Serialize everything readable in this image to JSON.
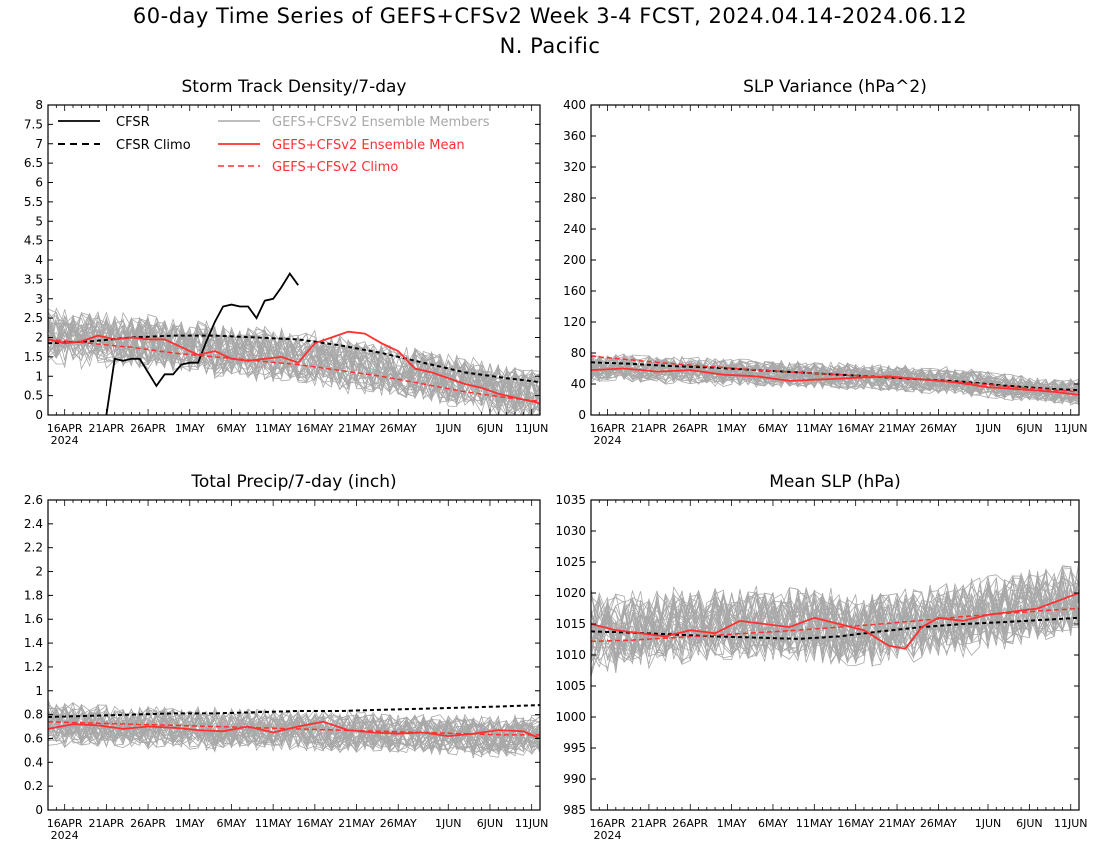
{
  "figure": {
    "title_line1": "60-day Time Series of GEFS+CFSv2 Week 3-4 FCST, 2024.04.14-2024.06.12",
    "title_line2": "N. Pacific"
  },
  "colors": {
    "cfsr": "#000000",
    "members": "#a8a8a8",
    "ens_mean": "#ff3030",
    "model_climo": "#ff3030"
  },
  "legend": {
    "cfsr": "CFSR",
    "cfsr_climo": "CFSR Climo",
    "members": "GEFS+CFSv2 Ensemble Members",
    "ens_mean": "GEFS+CFSv2 Ensemble Mean",
    "model_climo": "GEFS+CFSv2 Climo"
  },
  "x_axis": {
    "tick_labels": [
      "16APR",
      "21APR",
      "26APR",
      "1MAY",
      "6MAY",
      "11MAY",
      "16MAY",
      "21MAY",
      "26MAY",
      "1JUN",
      "6JUN",
      "11JUN"
    ],
    "tick_days": [
      2,
      7,
      12,
      17,
      22,
      27,
      32,
      37,
      42,
      48,
      53,
      58
    ],
    "year_label": "2024",
    "day_range": [
      0,
      59
    ]
  },
  "chart_data": [
    {
      "type": "line",
      "title": "Storm Track Density/7-day",
      "ylim": [
        0,
        8
      ],
      "yticks": [
        "0",
        "0.5",
        "1",
        "1.5",
        "2",
        "2.5",
        "3",
        "3.5",
        "4",
        "4.5",
        "5",
        "5.5",
        "6",
        "6.5",
        "7",
        "7.5",
        "8"
      ],
      "ytick_values": [
        0,
        0.5,
        1,
        1.5,
        2,
        2.5,
        3,
        3.5,
        4,
        4.5,
        5,
        5.5,
        6,
        6.5,
        7,
        7.5,
        8
      ],
      "member_band": {
        "center": [
          2.05,
          2.0,
          1.9,
          1.8,
          1.7,
          1.6,
          1.5,
          1.35,
          1.2,
          1.05,
          0.85,
          0.65,
          0.5
        ],
        "spread": 0.8,
        "count": 40
      },
      "series": [
        {
          "name": "CFSR",
          "role": "cfsr",
          "x": [
            6,
            7,
            8,
            9,
            10,
            11,
            12,
            13,
            14,
            15,
            16,
            17,
            18,
            19,
            20,
            21,
            22,
            23,
            24,
            25,
            26,
            27,
            28,
            29,
            30,
            31
          ],
          "y": [
            -0.8,
            0,
            1.45,
            1.4,
            1.45,
            1.45,
            1.1,
            0.75,
            1.05,
            1.05,
            1.3,
            1.35,
            1.35,
            1.9,
            2.4,
            2.8,
            2.85,
            2.8,
            2.8,
            2.5,
            2.95,
            3.0,
            3.3,
            3.65,
            3.35,
            null
          ]
        },
        {
          "name": "CFSR Climo",
          "role": "cfsr_climo",
          "x": [
            0,
            5,
            10,
            15,
            20,
            25,
            30,
            35,
            40,
            45,
            50,
            55,
            59
          ],
          "y": [
            1.85,
            1.9,
            2.0,
            2.05,
            2.05,
            2.0,
            1.95,
            1.8,
            1.6,
            1.35,
            1.1,
            0.95,
            0.85
          ]
        },
        {
          "name": "GEFS+CFSv2 Ensemble Mean",
          "role": "ens_mean",
          "x": [
            0,
            2,
            4,
            6,
            8,
            10,
            12,
            14,
            16,
            18,
            20,
            22,
            24,
            26,
            28,
            30,
            32,
            34,
            36,
            38,
            40,
            42,
            44,
            46,
            48,
            50,
            52,
            54,
            56,
            58,
            59
          ],
          "y": [
            1.95,
            1.85,
            1.9,
            2.05,
            1.95,
            2.0,
            1.95,
            1.95,
            1.75,
            1.55,
            1.65,
            1.45,
            1.4,
            1.45,
            1.5,
            1.35,
            1.85,
            2.0,
            2.15,
            2.1,
            1.85,
            1.65,
            1.2,
            1.1,
            0.95,
            0.8,
            0.7,
            0.55,
            0.45,
            0.35,
            0.3
          ]
        },
        {
          "name": "GEFS+CFSv2 Climo",
          "role": "model_climo",
          "x": [
            0,
            5,
            10,
            15,
            20,
            25,
            30,
            35,
            40,
            45,
            50,
            55,
            59
          ],
          "y": [
            1.95,
            1.85,
            1.75,
            1.6,
            1.5,
            1.4,
            1.3,
            1.15,
            1.0,
            0.8,
            0.6,
            0.45,
            0.35
          ]
        }
      ]
    },
    {
      "type": "line",
      "title": "SLP Variance (hPa^2)",
      "ylim": [
        0,
        400
      ],
      "yticks": [
        "0",
        "40",
        "80",
        "120",
        "160",
        "200",
        "240",
        "280",
        "320",
        "360",
        "400"
      ],
      "ytick_values": [
        0,
        40,
        80,
        120,
        160,
        200,
        240,
        280,
        320,
        360,
        400
      ],
      "member_band": {
        "center": [
          62,
          60,
          58,
          56,
          54,
          52,
          50,
          48,
          46,
          43,
          38,
          33,
          30
        ],
        "spread": 20,
        "count": 40
      },
      "series": [
        {
          "name": "CFSR Climo",
          "role": "cfsr_climo",
          "x": [
            0,
            5,
            10,
            15,
            20,
            25,
            30,
            35,
            40,
            45,
            50,
            55,
            59
          ],
          "y": [
            68,
            66,
            63,
            61,
            58,
            55,
            52,
            49,
            46,
            43,
            38,
            34,
            32
          ]
        },
        {
          "name": "GEFS+CFSv2 Ensemble Mean",
          "role": "ens_mean",
          "x": [
            0,
            4,
            8,
            12,
            16,
            20,
            24,
            28,
            32,
            36,
            40,
            44,
            48,
            52,
            56,
            59
          ],
          "y": [
            58,
            60,
            56,
            58,
            52,
            50,
            44,
            46,
            48,
            50,
            46,
            42,
            36,
            33,
            30,
            26
          ]
        },
        {
          "name": "GEFS+CFSv2 Climo",
          "role": "model_climo",
          "x": [
            0,
            5,
            10,
            15,
            20,
            25,
            30,
            35,
            40,
            45,
            50,
            55,
            59
          ],
          "y": [
            76,
            71,
            66,
            62,
            58,
            55,
            52,
            49,
            46,
            42,
            37,
            33,
            30
          ]
        }
      ]
    },
    {
      "type": "line",
      "title": "Total Precip/7-day (inch)",
      "ylim": [
        0,
        2.6
      ],
      "yticks": [
        "0",
        "0.2",
        "0.4",
        "0.6",
        "0.8",
        "1",
        "1.2",
        "1.4",
        "1.6",
        "1.8",
        "2",
        "2.2",
        "2.4",
        "2.6"
      ],
      "ytick_values": [
        0,
        0.2,
        0.4,
        0.6,
        0.8,
        1,
        1.2,
        1.4,
        1.6,
        1.8,
        2,
        2.2,
        2.4,
        2.6
      ],
      "member_band": {
        "center": [
          0.72,
          0.71,
          0.7,
          0.69,
          0.68,
          0.68,
          0.67,
          0.66,
          0.65,
          0.64,
          0.63,
          0.62,
          0.62
        ],
        "spread": 0.2,
        "count": 40
      },
      "series": [
        {
          "name": "CFSR Climo",
          "role": "cfsr_climo",
          "x": [
            0,
            5,
            10,
            15,
            20,
            25,
            30,
            35,
            40,
            45,
            50,
            55,
            59
          ],
          "y": [
            0.78,
            0.79,
            0.8,
            0.81,
            0.81,
            0.82,
            0.83,
            0.83,
            0.84,
            0.85,
            0.86,
            0.87,
            0.88
          ]
        },
        {
          "name": "GEFS+CFSv2 Ensemble Mean",
          "role": "ens_mean",
          "x": [
            0,
            3,
            6,
            9,
            12,
            15,
            18,
            21,
            24,
            27,
            30,
            33,
            36,
            39,
            42,
            45,
            48,
            51,
            54,
            57,
            59
          ],
          "y": [
            0.68,
            0.72,
            0.71,
            0.68,
            0.7,
            0.69,
            0.67,
            0.66,
            0.7,
            0.65,
            0.7,
            0.74,
            0.67,
            0.65,
            0.64,
            0.65,
            0.62,
            0.64,
            0.67,
            0.66,
            0.6
          ]
        },
        {
          "name": "GEFS+CFSv2 Climo",
          "role": "model_climo",
          "x": [
            0,
            5,
            10,
            15,
            20,
            25,
            30,
            35,
            40,
            45,
            50,
            55,
            59
          ],
          "y": [
            0.74,
            0.73,
            0.72,
            0.71,
            0.7,
            0.69,
            0.68,
            0.67,
            0.66,
            0.65,
            0.64,
            0.63,
            0.63
          ]
        }
      ]
    },
    {
      "type": "line",
      "title": "Mean SLP (hPa)",
      "ylim": [
        985,
        1035
      ],
      "yticks": [
        "985",
        "990",
        "995",
        "1000",
        "1005",
        "1010",
        "1015",
        "1020",
        "1025",
        "1030",
        "1035"
      ],
      "ytick_values": [
        985,
        990,
        995,
        1000,
        1005,
        1010,
        1015,
        1020,
        1025,
        1030,
        1035
      ],
      "member_band": {
        "center": [
          1014,
          1014,
          1014.5,
          1015,
          1015,
          1015,
          1014.5,
          1014,
          1015,
          1016,
          1017,
          1018,
          1019
        ],
        "spread": 7,
        "count": 40
      },
      "series": [
        {
          "name": "CFSR Climo",
          "role": "cfsr_climo",
          "x": [
            0,
            5,
            10,
            15,
            20,
            25,
            30,
            35,
            40,
            45,
            50,
            55,
            59
          ],
          "y": [
            1013.8,
            1013.6,
            1013.3,
            1013.0,
            1012.8,
            1012.6,
            1013.0,
            1013.8,
            1014.5,
            1015.0,
            1015.3,
            1015.7,
            1016.0
          ]
        },
        {
          "name": "GEFS+CFSv2 Ensemble Mean",
          "role": "ens_mean",
          "x": [
            0,
            3,
            6,
            9,
            12,
            15,
            18,
            21,
            24,
            27,
            30,
            33,
            36,
            38,
            40,
            42,
            45,
            48,
            51,
            54,
            57,
            59
          ],
          "y": [
            1015,
            1014,
            1013.5,
            1013,
            1014,
            1013.5,
            1015.5,
            1015,
            1014.5,
            1016,
            1015,
            1014,
            1011.5,
            1011,
            1014.5,
            1016,
            1015.5,
            1016.5,
            1017,
            1017.5,
            1019,
            1020
          ]
        },
        {
          "name": "GEFS+CFSv2 Climo",
          "role": "model_climo",
          "x": [
            0,
            5,
            10,
            15,
            20,
            25,
            30,
            35,
            40,
            45,
            50,
            55,
            59
          ],
          "y": [
            1012.2,
            1012.4,
            1012.8,
            1013.2,
            1013.6,
            1014.0,
            1014.5,
            1015.0,
            1015.6,
            1016.2,
            1016.7,
            1017.2,
            1017.5
          ]
        }
      ]
    }
  ]
}
